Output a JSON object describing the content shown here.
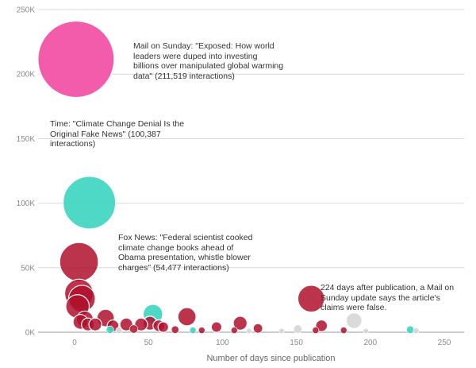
{
  "chart_data": {
    "type": "scatter",
    "xlabel": "Number of days since publication",
    "ylabel": "",
    "xlim": [
      -14,
      260
    ],
    "ylim": [
      0,
      250000
    ],
    "x_ticks": [
      0,
      50,
      100,
      150,
      200,
      250
    ],
    "x_tick_labels": [
      "0",
      "50",
      "100",
      "150",
      "200",
      "250"
    ],
    "y_ticks": [
      0,
      50000,
      100000,
      150000,
      200000,
      250000
    ],
    "y_tick_labels": [
      "0K",
      "50K",
      "100K",
      "150K",
      "200K",
      "250K"
    ],
    "grid": true,
    "colors": {
      "mail": "#f24ea3",
      "time": "#3fd6c2",
      "fox": "#b0102d",
      "teal": "#2ed1b8",
      "gray": "#d6d6d6",
      "crimson": "#b81236"
    },
    "series": [
      {
        "color_key": "mail",
        "points": [
          {
            "x": 1,
            "y": 211519
          }
        ]
      },
      {
        "color_key": "time",
        "points": [
          {
            "x": 10,
            "y": 100387
          },
          {
            "x": 53,
            "y": 14000
          },
          {
            "x": 24,
            "y": 2000
          },
          {
            "x": 227,
            "y": 2000
          },
          {
            "x": 80,
            "y": 1500
          }
        ]
      },
      {
        "color_key": "fox",
        "points": [
          {
            "x": 3,
            "y": 54477
          },
          {
            "x": 3,
            "y": 30000
          },
          {
            "x": 5,
            "y": 26000
          },
          {
            "x": 2,
            "y": 20000
          },
          {
            "x": 7,
            "y": 10000
          },
          {
            "x": 4,
            "y": 8000
          },
          {
            "x": 9,
            "y": 6000
          },
          {
            "x": 14,
            "y": 6000
          },
          {
            "x": 21,
            "y": 11000
          },
          {
            "x": 26,
            "y": 5000
          },
          {
            "x": 35,
            "y": 6000
          },
          {
            "x": 45,
            "y": 6000
          },
          {
            "x": 51,
            "y": 7000
          },
          {
            "x": 57,
            "y": 5000
          },
          {
            "x": 60,
            "y": 4000
          },
          {
            "x": 76,
            "y": 12000
          },
          {
            "x": 96,
            "y": 4000
          },
          {
            "x": 112,
            "y": 7000
          },
          {
            "x": 124,
            "y": 3000
          },
          {
            "x": 160,
            "y": 26000
          },
          {
            "x": 167,
            "y": 5000
          },
          {
            "x": 163,
            "y": 1500
          },
          {
            "x": 40,
            "y": 2500
          },
          {
            "x": 68,
            "y": 2000
          },
          {
            "x": 86,
            "y": 1500
          },
          {
            "x": 108,
            "y": 1500
          },
          {
            "x": 182,
            "y": 1500
          }
        ]
      },
      {
        "color_key": "gray",
        "points": [
          {
            "x": 189,
            "y": 9000
          },
          {
            "x": 151,
            "y": 2500
          },
          {
            "x": 30,
            "y": 1500
          },
          {
            "x": 140,
            "y": 1000
          },
          {
            "x": 118,
            "y": 1000
          },
          {
            "x": 197,
            "y": 1000
          },
          {
            "x": 231,
            "y": 1200
          }
        ]
      }
    ],
    "annotations": [
      {
        "text": "Mail on Sunday: \"Exposed: How world leaders were duped into investing billions over manipulated global warming data\" (211,519 interactions)"
      },
      {
        "text": "Time: \"Climate Change Denial Is the Original Fake News\" (100,387 interactions)"
      },
      {
        "text": "Fox News: \"Federal scientist cooked climate change books ahead of Obama presentation, whistle blower charges\" (54,477 interactions)"
      },
      {
        "text": "224 days after publication, a Mail on Sunday update says the article's claims were false."
      }
    ]
  }
}
